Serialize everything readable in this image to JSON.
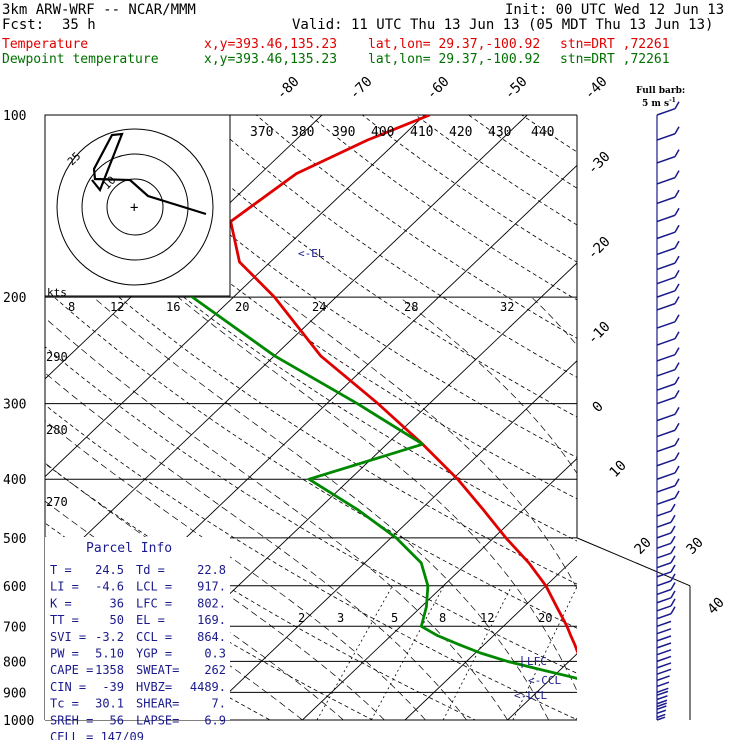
{
  "header": {
    "model": "3km ARW-WRF -- NCAR/MMM",
    "init": "Init: 00 UTC Wed 12 Jun 13",
    "fcst_label": "Fcst:",
    "fcst_value": "35 h",
    "valid": "Valid: 11 UTC Thu 13 Jun 13 (05 MDT Thu 13 Jun 13)",
    "temp_line": {
      "name": "Temperature",
      "xy": "x,y=393.46,135.23",
      "latlon": "lat,lon= 29.37,-100.92",
      "stn": "stn=DRT ,72261"
    },
    "dew_line": {
      "name": "Dewpoint temperature",
      "xy": "x,y=393.46,135.23",
      "latlon": "lat,lon= 29.37,-100.92",
      "stn": "stn=DRT ,72261"
    },
    "barb_note_1": "Full barb:",
    "barb_note_2": "5 m s",
    "barb_note_sup": "-1"
  },
  "colors": {
    "temperature": "#e00000",
    "dewpoint": "#008800",
    "wind": "#1a1a8c",
    "panel": "#1a1a8c"
  },
  "chart_data": {
    "type": "line",
    "title": "",
    "y_axis": "pressure (hPa)",
    "pressure_labels": [
      "100",
      "200",
      "300",
      "400",
      "500",
      "600",
      "700",
      "800",
      "900",
      "1000"
    ],
    "isotherm_labels": [
      "-80",
      "-70",
      "-60",
      "-50",
      "-40",
      "-30",
      "-20",
      "-10",
      "0",
      "10",
      "20",
      "30",
      "40"
    ],
    "theta_labels": [
      "370",
      "380",
      "390",
      "400",
      "410",
      "420",
      "430",
      "440"
    ],
    "theta_left_labels": [
      "290",
      "280",
      "270"
    ],
    "mixing_ratio_labels": [
      "2",
      "3",
      "5",
      "8",
      "12",
      "20"
    ],
    "hodo_kts_label": "kts",
    "hodo_speed_labels": [
      "8",
      "12",
      "16",
      "20",
      "24",
      "28",
      "32"
    ],
    "hodo_ring_labels": [
      "25",
      "10"
    ],
    "series": [
      {
        "name": "Temperature",
        "points": [
          [
            1000,
            24.5
          ],
          [
            975,
            23.5
          ],
          [
            950,
            22.5
          ],
          [
            925,
            20.8
          ],
          [
            900,
            19.0
          ],
          [
            875,
            17.2
          ],
          [
            850,
            15.5
          ],
          [
            825,
            13.6
          ],
          [
            800,
            11.8
          ],
          [
            775,
            10.0
          ],
          [
            750,
            8.8
          ],
          [
            725,
            7.5
          ],
          [
            700,
            6.2
          ],
          [
            650,
            3.2
          ],
          [
            600,
            0.0
          ],
          [
            550,
            -4.0
          ],
          [
            500,
            -8.8
          ],
          [
            450,
            -13.8
          ],
          [
            400,
            -19.5
          ],
          [
            350,
            -26.5
          ],
          [
            300,
            -35.0
          ],
          [
            250,
            -45.5
          ],
          [
            200,
            -56.0
          ],
          [
            175,
            -63.0
          ],
          [
            150,
            -68.0
          ],
          [
            125,
            -66.5
          ],
          [
            110,
            -63.0
          ],
          [
            100,
            -59.5
          ]
        ]
      },
      {
        "name": "Dewpoint temperature",
        "points": [
          [
            1000,
            22.8
          ],
          [
            975,
            21.5
          ],
          [
            950,
            19.5
          ],
          [
            925,
            18.0
          ],
          [
            900,
            17.5
          ],
          [
            875,
            15.5
          ],
          [
            850,
            12.0
          ],
          [
            825,
            8.0
          ],
          [
            800,
            4.0
          ],
          [
            775,
            0.5
          ],
          [
            750,
            -2.5
          ],
          [
            725,
            -5.5
          ],
          [
            700,
            -8.0
          ],
          [
            650,
            -9.5
          ],
          [
            600,
            -11.5
          ],
          [
            550,
            -14.5
          ],
          [
            500,
            -19.5
          ],
          [
            450,
            -26.0
          ],
          [
            400,
            -34.0
          ],
          [
            350,
            -26.5
          ],
          [
            300,
            -37.0
          ],
          [
            250,
            -50.0
          ],
          [
            200,
            -64.0
          ],
          [
            175,
            -73.0
          ],
          [
            150,
            -81.0
          ],
          [
            125,
            -84.0
          ],
          [
            110,
            -82.0
          ],
          [
            100,
            -80.0
          ]
        ]
      }
    ],
    "level_markers": [
      "<-EL",
      "LFC",
      "<-CCL",
      "<-LCL"
    ],
    "wind_barb_pressures": [
      1000,
      990,
      975,
      960,
      950,
      940,
      925,
      910,
      900,
      880,
      860,
      840,
      820,
      800,
      780,
      760,
      740,
      720,
      700,
      680,
      660,
      640,
      620,
      600,
      580,
      560,
      540,
      520,
      500,
      480,
      460,
      440,
      420,
      400,
      380,
      360,
      340,
      320,
      300,
      285,
      270,
      255,
      240,
      225,
      210,
      200,
      190,
      180,
      170,
      160,
      150,
      140,
      130,
      120,
      110,
      100
    ]
  },
  "parcel_info": {
    "title": "Parcel Info",
    "rows": [
      {
        "k1": "T  =",
        "v1": "24.5",
        "k2": "Td =",
        "v2": "22.8"
      },
      {
        "k1": "LI =",
        "v1": "-4.6",
        "k2": "LCL =",
        "v2": "917."
      },
      {
        "k1": "K  =",
        "v1": "36",
        "k2": "LFC =",
        "v2": "802."
      },
      {
        "k1": "TT =",
        "v1": "50",
        "k2": "EL  =",
        "v2": "169."
      },
      {
        "k1": "SVI =",
        "v1": "-3.2",
        "k2": "CCL =",
        "v2": "864."
      },
      {
        "k1": "PW =",
        "v1": "5.10",
        "k2": "YGP =",
        "v2": "0.3"
      },
      {
        "k1": "CAPE =",
        "v1": "1358",
        "k2": "SWEAT=",
        "v2": "262"
      },
      {
        "k1": "CIN =",
        "v1": "-39",
        "k2": "HVBZ=",
        "v2": "4489."
      },
      {
        "k1": "Tc =",
        "v1": "30.1",
        "k2": "SHEAR=",
        "v2": "7."
      },
      {
        "k1": "SREH =",
        "v1": "56",
        "k2": "LAPSE=",
        "v2": "6.9"
      }
    ],
    "cell_label": "CELL = 147/09"
  }
}
